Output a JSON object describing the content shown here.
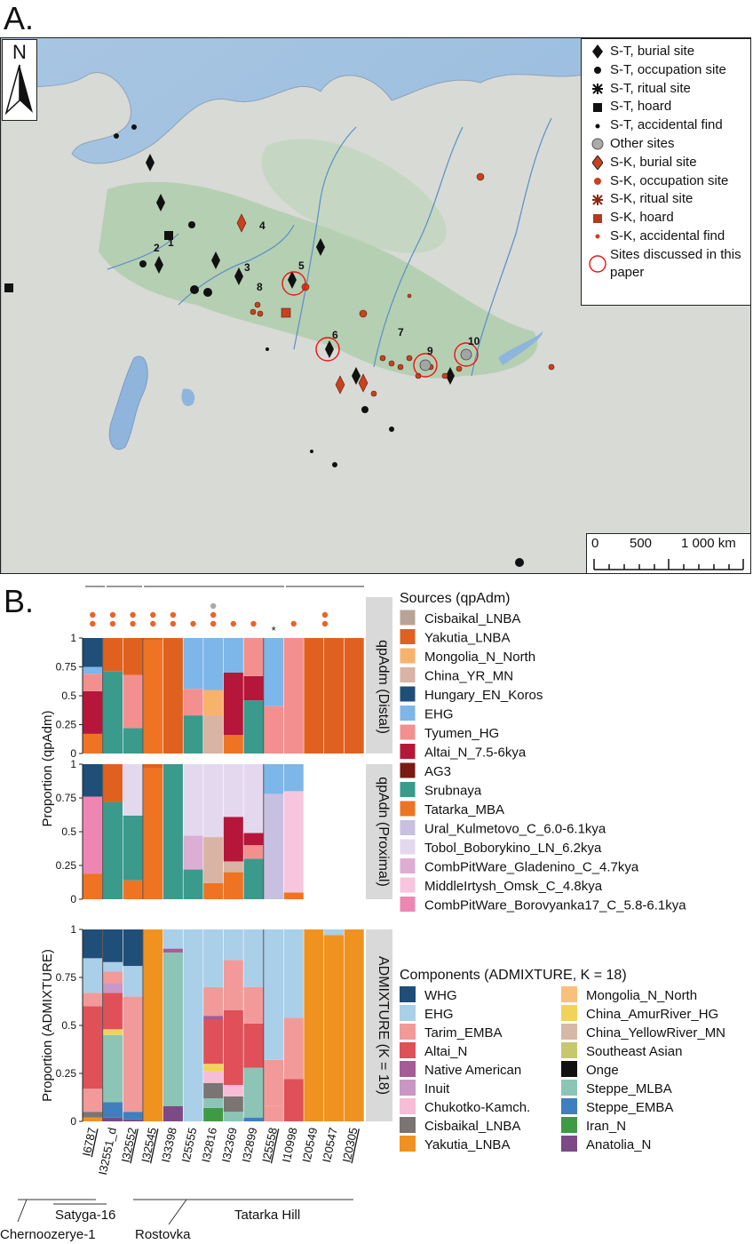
{
  "panel_a_label": "A.",
  "panel_b_label": "B.",
  "north_label": "N",
  "map_legend": [
    {
      "label": "S-T, burial site",
      "icon": "diamond-black"
    },
    {
      "label": "S-T, occupation site",
      "icon": "circle-black"
    },
    {
      "label": "S-T, ritual site",
      "icon": "asterisk-black"
    },
    {
      "label": "S-T, hoard",
      "icon": "square-black"
    },
    {
      "label": "S-T, accidental find",
      "icon": "dot-black"
    },
    {
      "label": "Other sites",
      "icon": "circle-grey"
    },
    {
      "label": "S-K, burial site",
      "icon": "diamond-red"
    },
    {
      "label": "S-K, occupation site",
      "icon": "circle-red"
    },
    {
      "label": "S-K, ritual site",
      "icon": "asterisk-red"
    },
    {
      "label": "S-K, hoard",
      "icon": "square-red"
    },
    {
      "label": "S-K, accidental find",
      "icon": "dot-red"
    },
    {
      "label": "Sites discussed in this paper",
      "icon": "ring-red"
    }
  ],
  "scale_bar": {
    "labels": [
      "0",
      "500",
      "1 000 km"
    ]
  },
  "site_numbers": [
    "1",
    "2",
    "3",
    "4",
    "5",
    "6",
    "7",
    "8",
    "9",
    "10"
  ],
  "colors": {
    "Cisbaikal_LNBA": "#b9a395",
    "Yakutia_LNBA": "#e0611f",
    "Mongolia_N_North": "#f8b26b",
    "China_YR_MN": "#d9b3a3",
    "Hungary_EN_Koros": "#1f4e79",
    "EHG": "#7db6e8",
    "Tyumen_HG": "#f48f8f",
    "Altai_N_7.5-6kya": "#b5163a",
    "AG3": "#7a1a14",
    "Srubnaya": "#3a9a8c",
    "Tatarka_MBA": "#ee7424",
    "Ural_Kulmetovo_C_6.0-6.1kya": "#c8c0e0",
    "Tobol_Boborykino_LN_6.2kya": "#e4d8ef",
    "CombPitWare_Gladenino_C_4.7kya": "#dcaed4",
    "MiddleIrtysh_Omsk_C_4.8kya": "#f7c6de",
    "CombPitWare_Borovyanka17_C_5.8-6.1kya": "#ee86b4",
    "WHG": "#1f4e79",
    "EHG_c": "#a9cfe9",
    "Tarim_EMBA": "#f29a9a",
    "Altai_N": "#e05058",
    "Native American": "#a35c95",
    "Inuit": "#c997c4",
    "Chukotko-Kamch.": "#f7bcd6",
    "Cisbaikal_LNBA_c": "#7a7472",
    "Yakutia_LNBA_c": "#f0921f",
    "Mongolia_N_North_c": "#f8c07c",
    "China_AmurRiver_HG": "#f1d35a",
    "China_YellowRiver_MN": "#d6b8a6",
    "Southeast Asian": "#c6c76e",
    "Onge": "#111111",
    "Steppe_MLBA": "#8cc4b6",
    "Steppe_EMBA": "#3f7fbf",
    "Iran_N": "#3f9a44",
    "Anatolia_N": "#7b4a87"
  },
  "chart_data": {
    "type": "bar",
    "stacked": true,
    "categories": [
      "I6787",
      "I32551_d",
      "I32552",
      "I32545",
      "I33398",
      "I25555",
      "I32816",
      "I32369",
      "I32899",
      "I25558",
      "I10998",
      "I20549",
      "I20547",
      "I20305"
    ],
    "underlined_categories": [
      "I6787",
      "I32552",
      "I32545",
      "I25558",
      "I20305"
    ],
    "site_groups": [
      {
        "name": "Chernoozerye-1",
        "members": [
          "I6787"
        ]
      },
      {
        "name": "Satyga-16",
        "members": [
          "I32551_d",
          "I32552"
        ]
      },
      {
        "name": "Rostovka",
        "members": [
          "I32545",
          "I33398",
          "I25555",
          "I32816",
          "I32369",
          "I32899"
        ]
      },
      {
        "name": "Tatarka Hill",
        "members": [
          "I25558",
          "I10998",
          "I20549",
          "I20547",
          "I20305"
        ]
      }
    ],
    "ylim": [
      0,
      1
    ],
    "yticks": [
      "0",
      "0.25",
      "0.5",
      "0.75",
      "1"
    ],
    "panels": [
      {
        "id": "distal",
        "strip_label": "qpAdm (Distal)",
        "ylabel": "Proportion (qpAdm)",
        "series": [
          {
            "name": "Tatarka_MBA",
            "values": [
              0.17,
              0.0,
              0.0,
              0.98,
              0.0,
              0.0,
              0.0,
              0.16,
              0.0,
              0.0,
              0.0,
              0.0,
              0.0,
              0.0
            ]
          },
          {
            "name": "Srubnaya",
            "values": [
              0.0,
              0.71,
              0.22,
              0.0,
              0.0,
              0.33,
              0.0,
              0.0,
              0.46,
              0.0,
              0.0,
              0.0,
              0.0,
              0.0
            ]
          },
          {
            "name": "Altai_N_7.5-6kya",
            "values": [
              0.37,
              0.0,
              0.0,
              0.0,
              0.0,
              0.0,
              0.0,
              0.54,
              0.21,
              0.0,
              0.0,
              0.0,
              0.0,
              0.0
            ]
          },
          {
            "name": "Tyumen_HG",
            "values": [
              0.15,
              0.0,
              0.46,
              0.0,
              0.0,
              0.23,
              0.0,
              0.0,
              0.33,
              0.41,
              1.0,
              0.0,
              0.0,
              0.0
            ]
          },
          {
            "name": "China_YR_MN",
            "values": [
              0.0,
              0.0,
              0.0,
              0.0,
              0.0,
              0.0,
              0.33,
              0.0,
              0.0,
              0.0,
              0.0,
              0.0,
              0.0,
              0.0
            ]
          },
          {
            "name": "Mongolia_N_North",
            "values": [
              0.0,
              0.0,
              0.0,
              0.0,
              0.0,
              0.0,
              0.22,
              0.0,
              0.0,
              0.0,
              0.0,
              0.0,
              0.0,
              0.0
            ]
          },
          {
            "name": "EHG",
            "values": [
              0.06,
              0.0,
              0.0,
              0.0,
              0.0,
              0.44,
              0.45,
              0.3,
              0.0,
              0.59,
              0.0,
              0.0,
              0.0,
              0.0
            ]
          },
          {
            "name": "Hungary_EN_Koros",
            "values": [
              0.25,
              0.0,
              0.0,
              0.0,
              0.0,
              0.0,
              0.0,
              0.0,
              0.0,
              0.0,
              0.0,
              0.0,
              0.0,
              0.0
            ]
          },
          {
            "name": "Yakutia_LNBA",
            "values": [
              0.0,
              0.29,
              0.32,
              0.02,
              1.0,
              0.0,
              0.0,
              0.0,
              0.0,
              0.0,
              0.0,
              1.0,
              1.0,
              1.0
            ]
          }
        ]
      },
      {
        "id": "proximal",
        "strip_label": "qpAdn (Proximal)",
        "ylabel": "",
        "series": [
          {
            "name": "Tatarka_MBA",
            "values": [
              0.19,
              0.0,
              0.14,
              0.97,
              0.0,
              0.0,
              0.12,
              0.2,
              0.0,
              0.0,
              0.05,
              0.0,
              0.0,
              0.0
            ]
          },
          {
            "name": "Srubnaya",
            "values": [
              0.0,
              0.72,
              0.48,
              0.0,
              1.0,
              0.22,
              0.0,
              0.0,
              0.3,
              0.0,
              0.0,
              0.0,
              0.0,
              0.0
            ]
          },
          {
            "name": "China_YR_MN",
            "values": [
              0.0,
              0.0,
              0.0,
              0.0,
              0.0,
              0.0,
              0.34,
              0.08,
              0.0,
              0.0,
              0.0,
              0.0,
              0.0,
              0.0
            ]
          },
          {
            "name": "Tyumen_HG",
            "values": [
              0.0,
              0.0,
              0.0,
              0.0,
              0.0,
              0.0,
              0.0,
              0.0,
              0.1,
              0.0,
              0.0,
              0.0,
              0.0,
              0.0
            ]
          },
          {
            "name": "Altai_N_7.5-6kya",
            "values": [
              0.0,
              0.0,
              0.0,
              0.0,
              0.0,
              0.0,
              0.0,
              0.33,
              0.09,
              0.0,
              0.0,
              0.0,
              0.0,
              0.0
            ]
          },
          {
            "name": "CombPitWare_Borovyanka17_C_5.8-6.1kya",
            "values": [
              0.57,
              0.0,
              0.0,
              0.0,
              0.0,
              0.0,
              0.0,
              0.0,
              0.0,
              0.0,
              0.0,
              0.0,
              0.0,
              0.0
            ]
          },
          {
            "name": "CombPitWare_Gladenino_C_4.7kya",
            "values": [
              0.0,
              0.0,
              0.0,
              0.0,
              0.0,
              0.25,
              0.0,
              0.0,
              0.0,
              0.0,
              0.0,
              0.0,
              0.0,
              0.0
            ]
          },
          {
            "name": "Ural_Kulmetovo_C_6.0-6.1kya",
            "values": [
              0.0,
              0.0,
              0.0,
              0.0,
              0.0,
              0.0,
              0.0,
              0.0,
              0.0,
              0.78,
              0.0,
              0.0,
              0.0,
              0.0
            ]
          },
          {
            "name": "MiddleIrtysh_Omsk_C_4.8kya",
            "values": [
              0.0,
              0.0,
              0.0,
              0.0,
              0.0,
              0.0,
              0.0,
              0.0,
              0.0,
              0.0,
              0.75,
              0.0,
              0.0,
              0.0
            ]
          },
          {
            "name": "Tobol_Boborykino_LN_6.2kya",
            "values": [
              0.0,
              0.0,
              0.38,
              0.0,
              0.0,
              0.53,
              0.54,
              0.39,
              0.51,
              0.0,
              0.0,
              0.0,
              0.0,
              0.0
            ]
          },
          {
            "name": "EHG",
            "values": [
              0.0,
              0.0,
              0.0,
              0.0,
              0.0,
              0.0,
              0.0,
              0.0,
              0.0,
              0.22,
              0.2,
              0.0,
              0.0,
              0.0
            ]
          },
          {
            "name": "Hungary_EN_Koros",
            "values": [
              0.24,
              0.0,
              0.0,
              0.0,
              0.0,
              0.0,
              0.0,
              0.0,
              0.0,
              0.0,
              0.0,
              0.0,
              0.0,
              0.0
            ]
          },
          {
            "name": "Yakutia_LNBA",
            "values": [
              0.0,
              0.28,
              0.0,
              0.03,
              0.0,
              0.0,
              0.0,
              0.0,
              0.0,
              0.0,
              0.0,
              0.0,
              0.0,
              0.0
            ]
          }
        ]
      },
      {
        "id": "admixture",
        "strip_label": "ADMIXTURE (K = 18)",
        "ylabel": "Proportion (ADMIXTURE)",
        "series": [
          {
            "name": "Yakutia_LNBA",
            "values": [
              0.02,
              0.0,
              0.0,
              1.0,
              0.0,
              0.0,
              0.0,
              0.0,
              0.0,
              0.0,
              0.0,
              1.0,
              0.97,
              1.0
            ]
          },
          {
            "name": "Anatolia_N",
            "values": [
              0.0,
              0.02,
              0.01,
              0.0,
              0.08,
              0.0,
              0.0,
              0.0,
              0.0,
              0.0,
              0.0,
              0.0,
              0.0,
              0.0
            ]
          },
          {
            "name": "Iran_N",
            "values": [
              0.0,
              0.0,
              0.0,
              0.0,
              0.0,
              0.0,
              0.07,
              0.0,
              0.0,
              0.0,
              0.0,
              0.0,
              0.0,
              0.0
            ]
          },
          {
            "name": "Steppe_EMBA",
            "values": [
              0.0,
              0.08,
              0.04,
              0.0,
              0.0,
              0.0,
              0.0,
              0.0,
              0.02,
              0.0,
              0.0,
              0.0,
              0.0,
              0.0
            ]
          },
          {
            "name": "Steppe_MLBA",
            "values": [
              0.0,
              0.35,
              0.0,
              0.0,
              0.8,
              0.0,
              0.05,
              0.05,
              0.26,
              0.0,
              0.0,
              0.0,
              0.0,
              0.0
            ]
          },
          {
            "name": "Cisbaikal_LNBA",
            "values": [
              0.03,
              0.0,
              0.0,
              0.0,
              0.0,
              0.0,
              0.08,
              0.08,
              0.0,
              0.0,
              0.0,
              0.0,
              0.0,
              0.0
            ]
          },
          {
            "name": "Tarim_EMBA",
            "values": [
              0.12,
              0.0,
              0.0,
              0.0,
              0.0,
              0.0,
              0.0,
              0.0,
              0.0,
              0.08,
              0.0,
              0.0,
              0.0,
              0.0
            ]
          },
          {
            "name": "Chukotko-Kamch.",
            "values": [
              0.0,
              0.0,
              0.0,
              0.0,
              0.0,
              0.0,
              0.06,
              0.06,
              0.0,
              0.0,
              0.0,
              0.0,
              0.0,
              0.0
            ]
          },
          {
            "name": "China_AmurRiver_HG",
            "values": [
              0.0,
              0.03,
              0.0,
              0.0,
              0.0,
              0.0,
              0.04,
              0.0,
              0.0,
              0.0,
              0.0,
              0.0,
              0.0,
              0.0
            ]
          },
          {
            "name": "Altai_N",
            "values": [
              0.43,
              0.19,
              0.0,
              0.0,
              0.0,
              0.0,
              0.23,
              0.39,
              0.23,
              0.0,
              0.22,
              0.0,
              0.0,
              0.0
            ]
          },
          {
            "name": "Native American",
            "values": [
              0.0,
              0.0,
              0.0,
              0.0,
              0.02,
              0.0,
              0.02,
              0.0,
              0.0,
              0.0,
              0.0,
              0.0,
              0.0,
              0.0
            ]
          },
          {
            "name": "Inuit",
            "values": [
              0.0,
              0.05,
              0.0,
              0.0,
              0.0,
              0.0,
              0.0,
              0.0,
              0.0,
              0.0,
              0.0,
              0.0,
              0.0,
              0.0
            ]
          },
          {
            "name": "Tarim_EMBA",
            "values": [
              0.07,
              0.06,
              0.6,
              0.0,
              0.0,
              0.0,
              0.15,
              0.26,
              0.19,
              0.24,
              0.32,
              0.0,
              0.0,
              0.0
            ]
          },
          {
            "name": "EHG",
            "values": [
              0.18,
              0.05,
              0.16,
              0.0,
              0.1,
              1.0,
              0.3,
              0.16,
              0.3,
              0.68,
              0.46,
              0.0,
              0.03,
              0.0
            ]
          },
          {
            "name": "WHG",
            "values": [
              0.15,
              0.17,
              0.19,
              0.0,
              0.0,
              0.0,
              0.0,
              0.0,
              0.0,
              0.0,
              0.0,
              0.0,
              0.0,
              0.0
            ]
          }
        ]
      }
    ],
    "stars": [
      {
        "panel": "distal",
        "category": "I25558",
        "label": "*"
      }
    ],
    "legend_sources": {
      "title": "Sources (qpAdm)",
      "items": [
        "Cisbaikal_LNBA",
        "Yakutia_LNBA",
        "Mongolia_N_North",
        "China_YR_MN",
        "Hungary_EN_Koros",
        "EHG",
        "Tyumen_HG",
        "Altai_N_7.5-6kya",
        "AG3",
        "Srubnaya",
        "Tatarka_MBA",
        "Ural_Kulmetovo_C_6.0-6.1kya",
        "Tobol_Boborykino_LN_6.2kya",
        "CombPitWare_Gladenino_C_4.7kya",
        "MiddleIrtysh_Omsk_C_4.8kya",
        "CombPitWare_Borovyanka17_C_5.8-6.1kya"
      ]
    },
    "legend_components": {
      "title": "Components (ADMIXTURE, K = 18)",
      "col1": [
        "WHG",
        "EHG",
        "Tarim_EMBA",
        "Altai_N",
        "Native American",
        "Inuit",
        "Chukotko-Kamch.",
        "Cisbaikal_LNBA",
        "Yakutia_LNBA"
      ],
      "col2": [
        "Mongolia_N_North",
        "China_AmurRiver_HG",
        "China_YellowRiver_MN",
        "Southeast Asian",
        "Onge",
        "Steppe_MLBA",
        "Steppe_EMBA",
        "Iran_N",
        "Anatolia_N"
      ]
    }
  }
}
